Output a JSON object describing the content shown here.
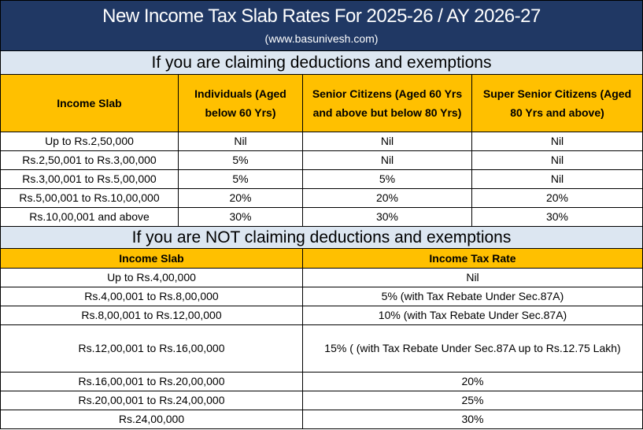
{
  "header": {
    "title": "New Income Tax Slab Rates For 2025-26 / AY 2026-27",
    "subtitle": "(www.basunivesh.com)"
  },
  "sections": [
    {
      "heading": "If you are claiming deductions and exemptions",
      "columns": [
        "Income Slab",
        "Individuals (Aged below 60 Yrs)",
        "Senior Citizens (Aged 60 Yrs and above but below 80 Yrs)",
        "Super Senior Citizens (Aged 80 Yrs and above)"
      ],
      "rows": [
        [
          "Up to Rs.2,50,000",
          "Nil",
          "Nil",
          "Nil"
        ],
        [
          "Rs.2,50,001 to Rs.3,00,000",
          "5%",
          "Nil",
          "Nil"
        ],
        [
          "Rs.3,00,001 to Rs.5,00,000",
          "5%",
          "5%",
          "Nil"
        ],
        [
          "Rs.5,00,001 to Rs.10,00,000",
          "20%",
          "20%",
          "20%"
        ],
        [
          "Rs.10,00,001 and above",
          "30%",
          "30%",
          "30%"
        ]
      ]
    },
    {
      "heading": "If you are NOT claiming deductions and exemptions",
      "columns": [
        "Income Slab",
        "Income Tax Rate"
      ],
      "rows": [
        [
          "Up to Rs.4,00,000",
          "Nil"
        ],
        [
          "Rs.4,00,001 to Rs.8,00,000",
          "5% (with Tax Rebate Under Sec.87A)"
        ],
        [
          "Rs.8,00,001 to Rs.12,00,000",
          "10% (with Tax Rebate Under Sec.87A)"
        ],
        [
          "Rs.12,00,001 to Rs.16,00,000",
          "15% ( (with Tax Rebate Under Sec.87A up to Rs.12.75 Lakh)"
        ],
        [
          "Rs.16,00,001 to Rs.20,00,000",
          "20%"
        ],
        [
          "Rs.20,00,001 to Rs.24,00,000",
          "25%"
        ],
        [
          "Rs.24,00,000",
          "30%"
        ]
      ]
    }
  ]
}
